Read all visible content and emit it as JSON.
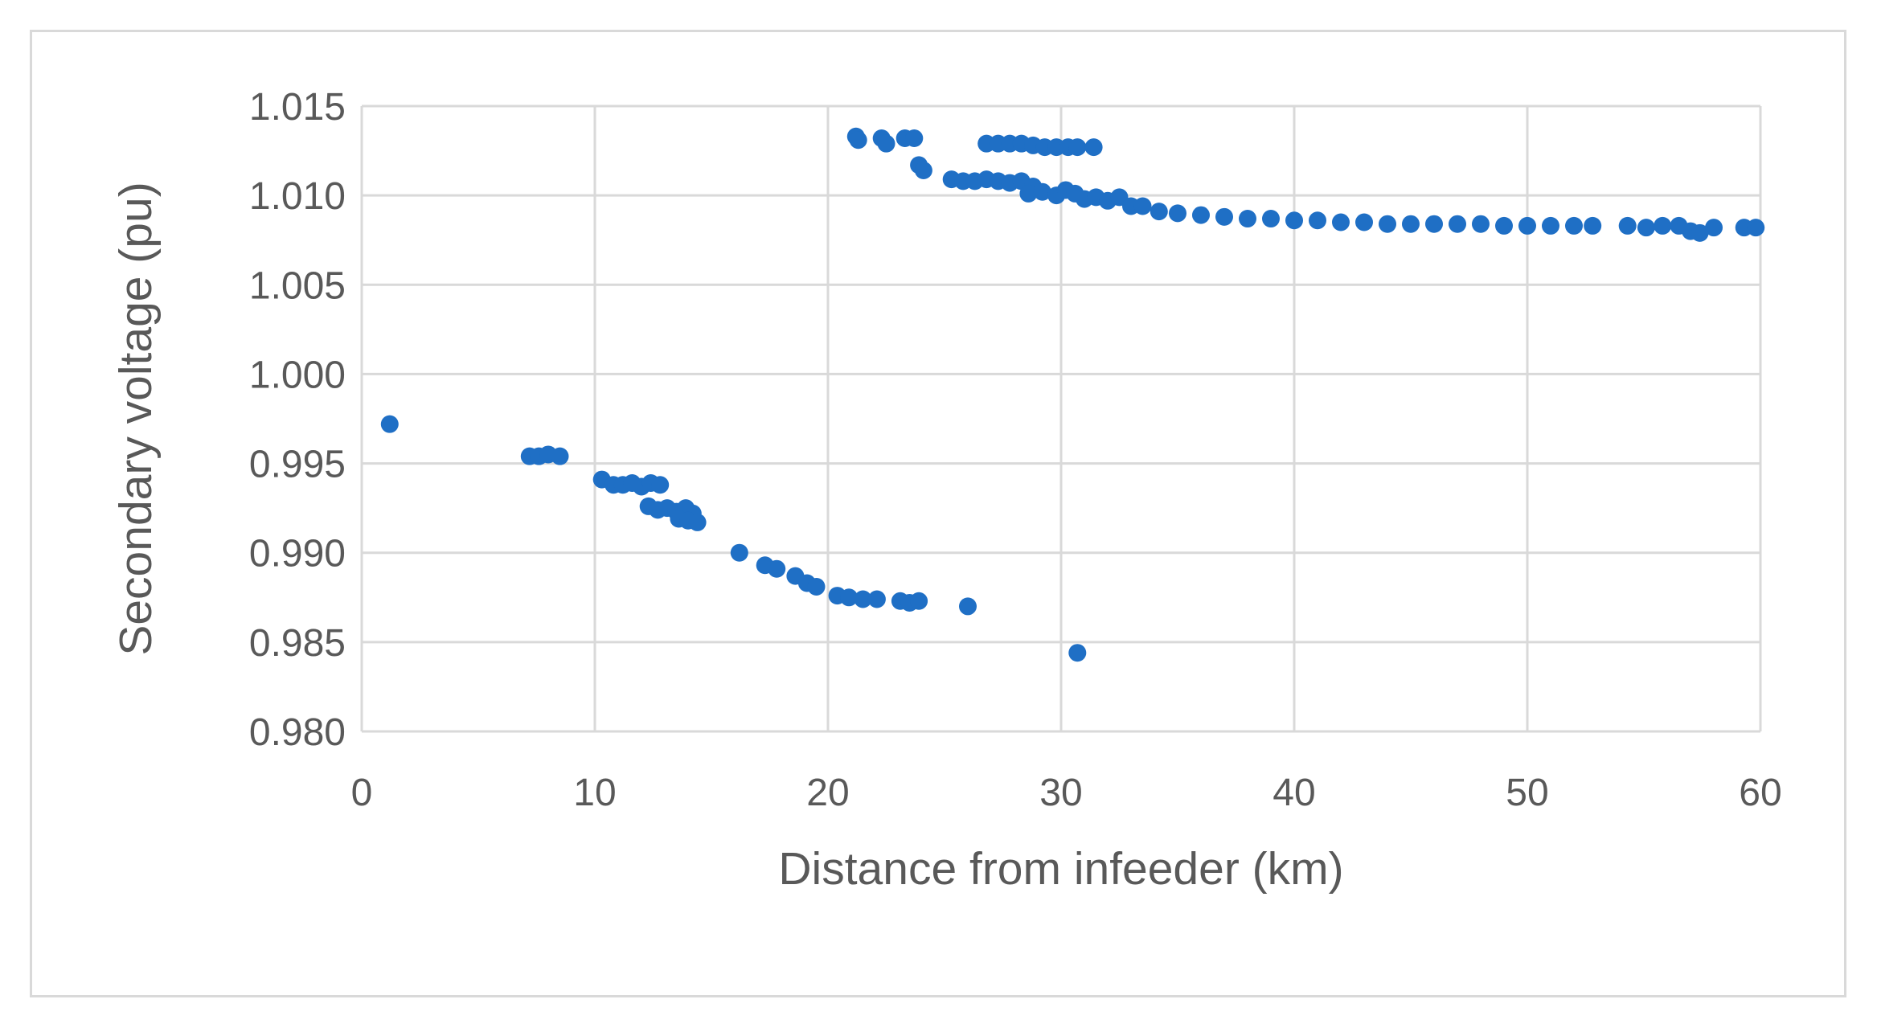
{
  "chart_data": {
    "type": "scatter",
    "title": "",
    "xlabel": "Distance from infeeder (km)",
    "ylabel": "Secondary voltage (pu)",
    "xlim": [
      0,
      60
    ],
    "ylim": [
      0.98,
      1.015
    ],
    "grid": true,
    "marker_color": "#1f6fc5",
    "x_ticks": [
      {
        "value": 0,
        "label": "0"
      },
      {
        "value": 10,
        "label": "10"
      },
      {
        "value": 20,
        "label": "20"
      },
      {
        "value": 30,
        "label": "30"
      },
      {
        "value": 40,
        "label": "40"
      },
      {
        "value": 50,
        "label": "50"
      },
      {
        "value": 60,
        "label": "60"
      }
    ],
    "y_ticks": [
      {
        "value": 0.98,
        "label": "0.980"
      },
      {
        "value": 0.985,
        "label": "0.985"
      },
      {
        "value": 0.99,
        "label": "0.990"
      },
      {
        "value": 0.995,
        "label": "0.995"
      },
      {
        "value": 1.0,
        "label": "1.000"
      },
      {
        "value": 1.005,
        "label": "1.005"
      },
      {
        "value": 1.01,
        "label": "1.010"
      },
      {
        "value": 1.015,
        "label": "1.015"
      }
    ],
    "series": [
      {
        "points": [
          [
            1.2,
            0.9972
          ],
          [
            7.2,
            0.9954
          ],
          [
            7.6,
            0.9954
          ],
          [
            8.0,
            0.9955
          ],
          [
            8.5,
            0.9954
          ],
          [
            10.3,
            0.9941
          ],
          [
            10.8,
            0.9938
          ],
          [
            11.2,
            0.9938
          ],
          [
            11.6,
            0.9939
          ],
          [
            12.0,
            0.9937
          ],
          [
            12.4,
            0.9939
          ],
          [
            12.8,
            0.9938
          ],
          [
            12.3,
            0.9926
          ],
          [
            12.7,
            0.9924
          ],
          [
            13.1,
            0.9925
          ],
          [
            13.5,
            0.9923
          ],
          [
            13.9,
            0.9925
          ],
          [
            14.2,
            0.9922
          ],
          [
            13.6,
            0.9919
          ],
          [
            14.0,
            0.9918
          ],
          [
            14.4,
            0.9917
          ],
          [
            16.2,
            0.99
          ],
          [
            17.3,
            0.9893
          ],
          [
            17.8,
            0.9891
          ],
          [
            18.6,
            0.9887
          ],
          [
            19.1,
            0.9883
          ],
          [
            19.5,
            0.9881
          ],
          [
            20.4,
            0.9876
          ],
          [
            20.9,
            0.9875
          ],
          [
            21.5,
            0.9874
          ],
          [
            22.1,
            0.9874
          ],
          [
            23.1,
            0.9873
          ],
          [
            23.5,
            0.9872
          ],
          [
            23.9,
            0.9873
          ],
          [
            26.0,
            0.987
          ],
          [
            30.7,
            0.9844
          ],
          [
            21.2,
            1.0133
          ],
          [
            21.3,
            1.0131
          ],
          [
            22.3,
            1.0132
          ],
          [
            22.5,
            1.0129
          ],
          [
            23.3,
            1.0132
          ],
          [
            23.7,
            1.0132
          ],
          [
            23.9,
            1.0117
          ],
          [
            24.1,
            1.0114
          ],
          [
            25.3,
            1.0109
          ],
          [
            25.8,
            1.0108
          ],
          [
            26.3,
            1.0108
          ],
          [
            26.8,
            1.0109
          ],
          [
            27.3,
            1.0108
          ],
          [
            27.8,
            1.0107
          ],
          [
            28.3,
            1.0108
          ],
          [
            28.8,
            1.0105
          ],
          [
            26.8,
            1.0129
          ],
          [
            27.3,
            1.0129
          ],
          [
            27.8,
            1.0129
          ],
          [
            28.3,
            1.0129
          ],
          [
            28.8,
            1.0128
          ],
          [
            29.3,
            1.0127
          ],
          [
            29.8,
            1.0127
          ],
          [
            30.3,
            1.0127
          ],
          [
            30.7,
            1.0127
          ],
          [
            31.4,
            1.0127
          ],
          [
            28.6,
            1.0101
          ],
          [
            29.2,
            1.0102
          ],
          [
            29.8,
            1.01
          ],
          [
            30.2,
            1.0103
          ],
          [
            30.6,
            1.0101
          ],
          [
            31.0,
            1.0098
          ],
          [
            31.5,
            1.0099
          ],
          [
            32.0,
            1.0097
          ],
          [
            32.5,
            1.0099
          ],
          [
            33.0,
            1.0094
          ],
          [
            33.5,
            1.0094
          ],
          [
            34.2,
            1.0091
          ],
          [
            35.0,
            1.009
          ],
          [
            36.0,
            1.0089
          ],
          [
            37.0,
            1.0088
          ],
          [
            38.0,
            1.0087
          ],
          [
            39.0,
            1.0087
          ],
          [
            40.0,
            1.0086
          ],
          [
            41.0,
            1.0086
          ],
          [
            42.0,
            1.0085
          ],
          [
            43.0,
            1.0085
          ],
          [
            44.0,
            1.0084
          ],
          [
            45.0,
            1.0084
          ],
          [
            46.0,
            1.0084
          ],
          [
            47.0,
            1.0084
          ],
          [
            48.0,
            1.0084
          ],
          [
            49.0,
            1.0083
          ],
          [
            50.0,
            1.0083
          ],
          [
            51.0,
            1.0083
          ],
          [
            52.0,
            1.0083
          ],
          [
            52.8,
            1.0083
          ],
          [
            54.3,
            1.0083
          ],
          [
            55.1,
            1.0082
          ],
          [
            55.8,
            1.0083
          ],
          [
            56.5,
            1.0083
          ],
          [
            57.0,
            1.008
          ],
          [
            57.4,
            1.0079
          ],
          [
            58.0,
            1.0082
          ],
          [
            59.3,
            1.0082
          ],
          [
            59.8,
            1.0082
          ]
        ]
      }
    ]
  }
}
